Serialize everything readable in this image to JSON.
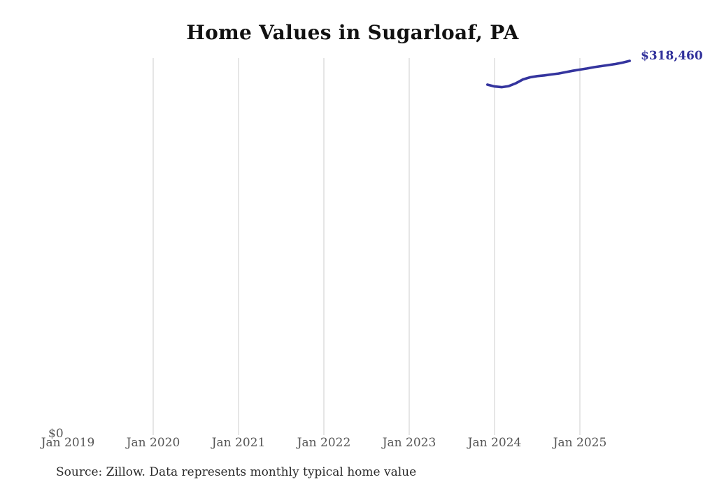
{
  "page": {
    "background_color": "#ffffff"
  },
  "chart": {
    "title": "Home Values in Sugarloaf, PA",
    "source_note": "Source: Zillow. Data represents monthly typical home value",
    "y_zero_label": "$0",
    "end_value_label": "$318,460"
  },
  "chart_data": {
    "type": "line",
    "title": "Home Values in Sugarloaf, PA",
    "xlabel": "",
    "ylabel": "",
    "x_tick_labels": [
      "Jan 2019",
      "Jan 2020",
      "Jan 2021",
      "Jan 2022",
      "Jan 2023",
      "Jan 2024",
      "Jan 2025"
    ],
    "y_tick_labels": [
      "$0"
    ],
    "ylim": [
      0,
      321000
    ],
    "x_range_shown": [
      "Jan 2019",
      "Aug 2025"
    ],
    "grid": "vertical gridlines at Jan 2020 through Jan 2025 only",
    "legend_position": "none",
    "annotation": "series end labeled $318,460 at right edge (clipped)",
    "colors": {
      "line": "#34349e",
      "end_label": "#31319b",
      "gridline": "#cccccc",
      "tick_label": "#555555",
      "title": "#111111",
      "source": "#2b2b2b"
    },
    "series": [
      {
        "name": "Typical home value",
        "color": "#34349e",
        "start_month_index_from_jan_2019": 59,
        "months": [
          "Dec 2023",
          "Jan 2024",
          "Feb 2024",
          "Mar 2024",
          "Apr 2024",
          "May 2024",
          "Jun 2024",
          "Jul 2024",
          "Aug 2024",
          "Sep 2024",
          "Oct 2024",
          "Nov 2024",
          "Dec 2024",
          "Jan 2025",
          "Feb 2025",
          "Mar 2025",
          "Apr 2025",
          "May 2025",
          "Jun 2025",
          "Jul 2025",
          "Aug 2025"
        ],
        "values": [
          298200,
          296700,
          296100,
          297000,
          299400,
          302700,
          304500,
          305500,
          306100,
          306900,
          307700,
          308900,
          310000,
          311000,
          312000,
          313100,
          314000,
          314900,
          315800,
          317000,
          318460
        ]
      }
    ]
  }
}
